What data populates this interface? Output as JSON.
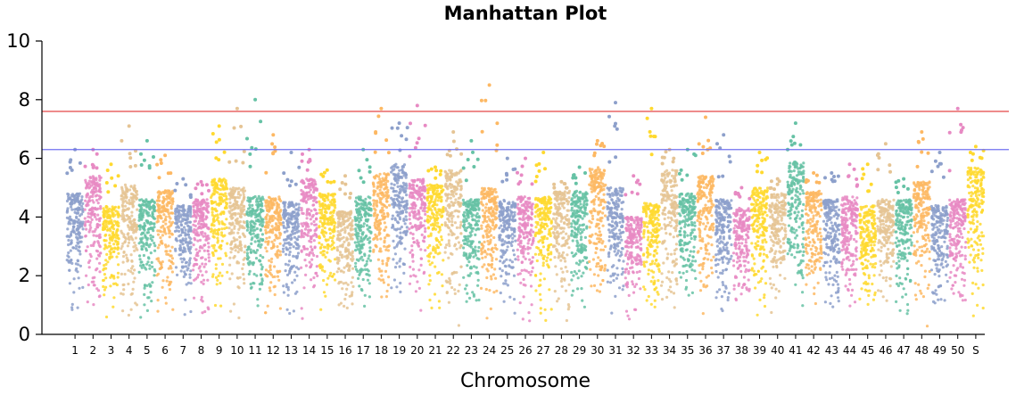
{
  "chart_data": {
    "type": "scatter",
    "subtype": "manhattan",
    "title": "Manhattan Plot",
    "xlabel": "Chromosome",
    "ylabel": "",
    "ylim": [
      0,
      10
    ],
    "yticks": [
      0,
      2,
      4,
      6,
      8,
      10
    ],
    "grid": false,
    "legend": "none",
    "palette": [
      "#8da0cb",
      "#e78ac3",
      "#ffd92f",
      "#e5c494",
      "#66c2a5",
      "#fdb863"
    ],
    "thresholds": [
      {
        "value": 7.6,
        "color": "#e03030"
      },
      {
        "value": 6.3,
        "color": "#7070f0"
      }
    ],
    "categories": [
      "1",
      "2",
      "3",
      "4",
      "5",
      "6",
      "7",
      "8",
      "9",
      "10",
      "11",
      "12",
      "13",
      "14",
      "15",
      "16",
      "17",
      "18",
      "19",
      "20",
      "21",
      "22",
      "23",
      "24",
      "25",
      "26",
      "27",
      "28",
      "29",
      "30",
      "31",
      "32",
      "33",
      "34",
      "35",
      "36",
      "37",
      "38",
      "39",
      "40",
      "41",
      "42",
      "43",
      "44",
      "45",
      "46",
      "47",
      "48",
      "49",
      "50",
      "S"
    ],
    "colors": [
      "#8da0cb",
      "#e78ac3",
      "#ffd92f",
      "#e5c494",
      "#66c2a5",
      "#fdb863",
      "#8da0cb",
      "#e78ac3",
      "#ffd92f",
      "#e5c494",
      "#66c2a5",
      "#fdb863",
      "#8da0cb",
      "#e78ac3",
      "#ffd92f",
      "#e5c494",
      "#66c2a5",
      "#fdb863",
      "#8da0cb",
      "#e78ac3",
      "#ffd92f",
      "#e5c494",
      "#66c2a5",
      "#fdb863",
      "#8da0cb",
      "#e78ac3",
      "#ffd92f",
      "#e5c494",
      "#66c2a5",
      "#fdb863",
      "#8da0cb",
      "#e78ac3",
      "#ffd92f",
      "#e5c494",
      "#66c2a5",
      "#fdb863",
      "#8da0cb",
      "#e78ac3",
      "#ffd92f",
      "#e5c494",
      "#66c2a5",
      "#fdb863",
      "#8da0cb",
      "#e78ac3",
      "#ffd92f",
      "#e5c494",
      "#66c2a5",
      "#fdb863",
      "#8da0cb",
      "#e78ac3",
      "#ffd92f"
    ],
    "max_values": [
      6.3,
      6.3,
      5.8,
      7.1,
      6.6,
      6.1,
      5.3,
      5.2,
      7.1,
      7.7,
      8.0,
      6.8,
      6.2,
      6.3,
      5.6,
      5.4,
      6.3,
      7.7,
      7.2,
      7.8,
      5.7,
      6.9,
      6.6,
      8.5,
      6.0,
      6.0,
      6.2,
      5.2,
      5.7,
      6.6,
      7.9,
      5.4,
      7.7,
      6.3,
      6.3,
      7.4,
      6.8,
      5.0,
      6.2,
      5.3,
      7.2,
      5.5,
      5.5,
      5.8,
      5.8,
      6.5,
      5.3,
      6.9,
      6.2,
      7.7,
      6.4
    ],
    "typical_top": [
      4.8,
      5.4,
      4.4,
      5.1,
      4.6,
      4.9,
      4.4,
      4.6,
      5.3,
      5.0,
      4.7,
      4.7,
      4.5,
      5.3,
      4.8,
      4.2,
      4.7,
      5.5,
      5.8,
      5.3,
      5.1,
      5.6,
      4.6,
      5.0,
      4.6,
      4.7,
      4.7,
      4.9,
      4.9,
      5.7,
      5.0,
      4.0,
      4.5,
      5.6,
      4.8,
      5.4,
      4.6,
      4.3,
      5.0,
      4.8,
      5.9,
      4.9,
      4.6,
      4.7,
      4.4,
      4.6,
      4.6,
      5.2,
      4.4,
      4.6,
      5.7
    ]
  }
}
